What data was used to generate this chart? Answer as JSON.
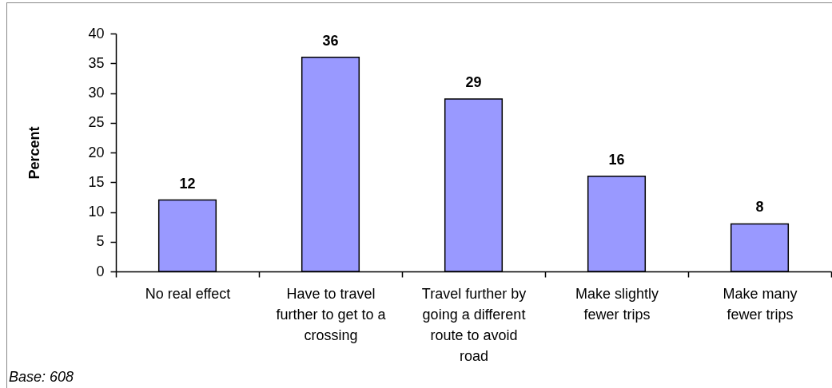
{
  "chart_data": {
    "type": "bar",
    "ylabel": "Percent",
    "categories": [
      "No real effect",
      "Have to travel further to get to a crossing",
      "Travel further by going a different route to avoid road",
      "Make slightly fewer trips",
      "Make many fewer trips"
    ],
    "values": [
      12,
      36,
      29,
      16,
      8
    ],
    "color": "#9999ff",
    "ylim": [
      0,
      40
    ],
    "yticks": [
      0,
      5,
      10,
      15,
      20,
      25,
      30,
      35,
      40
    ],
    "data_labels": true,
    "annotations": [
      "Base: 608"
    ]
  }
}
